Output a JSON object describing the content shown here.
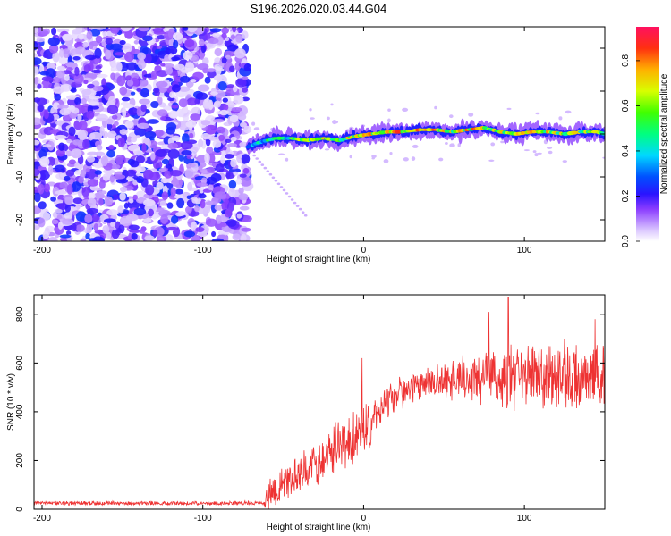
{
  "title": "S196.2026.020.03.44.G04",
  "colors": {
    "snr_line": "#ee3333",
    "frame": "#000000",
    "background": "#ffffff"
  },
  "chart_data": [
    {
      "type": "heatmap",
      "name": "spectrogram",
      "xlabel": "Height of straight line (km)",
      "ylabel": "Frequency (Hz)",
      "xlim": [
        -205,
        150
      ],
      "ylim": [
        -25,
        25
      ],
      "xticks": [
        -200,
        -100,
        0,
        100
      ],
      "xtick_labels": [
        "-200",
        "-100",
        "0",
        "100"
      ],
      "yticks": [
        -20,
        -10,
        0,
        10,
        20
      ],
      "ytick_labels": [
        "-20",
        "-10",
        "0",
        "10",
        "20"
      ],
      "colorbar": {
        "label": "Normalized spectral amplitude",
        "range": [
          0,
          0.95
        ],
        "ticks": [
          0.0,
          0.2,
          0.4,
          0.6,
          0.8
        ],
        "tick_labels": [
          "0.0",
          "0.2",
          "0.4",
          "0.6",
          "0.8"
        ]
      },
      "noise_region_x": [
        -205,
        -72
      ],
      "signal_track": {
        "x": [
          -72,
          -65,
          -55,
          -45,
          -35,
          -25,
          -15,
          -5,
          5,
          15,
          25,
          35,
          45,
          55,
          65,
          75,
          85,
          95,
          105,
          115,
          125,
          135,
          145,
          150
        ],
        "freq": [
          -3,
          -2,
          -1,
          -1,
          -1.5,
          -1,
          -1.5,
          -0.5,
          0,
          0.5,
          0.5,
          1,
          1,
          0.5,
          1,
          1.5,
          0.5,
          0,
          0.5,
          0.5,
          0,
          0.5,
          0.5,
          0
        ],
        "amplitude": [
          0.35,
          0.5,
          0.6,
          0.65,
          0.7,
          0.75,
          0.7,
          0.8,
          0.85,
          0.85,
          0.9,
          0.85,
          0.85,
          0.8,
          0.85,
          0.9,
          0.85,
          0.8,
          0.8,
          0.8,
          0.75,
          0.75,
          0.75,
          0.7
        ]
      }
    },
    {
      "type": "line",
      "name": "snr",
      "xlabel": "Height of straight line (km)",
      "ylabel": "SNR (10 * v/v)",
      "xlim": [
        -205,
        150
      ],
      "ylim": [
        0,
        880
      ],
      "xticks": [
        -200,
        -100,
        0,
        100
      ],
      "xtick_labels": [
        "-200",
        "-100",
        "0",
        "100"
      ],
      "yticks": [
        0,
        200,
        400,
        600,
        800
      ],
      "ytick_labels": [
        "0",
        "200",
        "400",
        "600",
        "800"
      ],
      "envelope_x": [
        -205,
        -62,
        -60,
        -50,
        -40,
        -30,
        -20,
        -10,
        0,
        10,
        20,
        30,
        40,
        50,
        60,
        70,
        80,
        90,
        100,
        110,
        120,
        130,
        140,
        150
      ],
      "envelope_mean": [
        25,
        25,
        40,
        110,
        150,
        170,
        230,
        280,
        330,
        400,
        470,
        500,
        520,
        530,
        540,
        540,
        545,
        545,
        540,
        540,
        540,
        540,
        540,
        540
      ],
      "envelope_spread": [
        8,
        8,
        60,
        70,
        80,
        90,
        100,
        110,
        110,
        80,
        70,
        60,
        60,
        70,
        80,
        100,
        120,
        130,
        130,
        130,
        130,
        130,
        130,
        130
      ],
      "peaks": [
        {
          "x": -1,
          "y": 620
        },
        {
          "x": 78,
          "y": 810
        },
        {
          "x": 90,
          "y": 870
        },
        {
          "x": 144,
          "y": 780
        }
      ]
    }
  ]
}
